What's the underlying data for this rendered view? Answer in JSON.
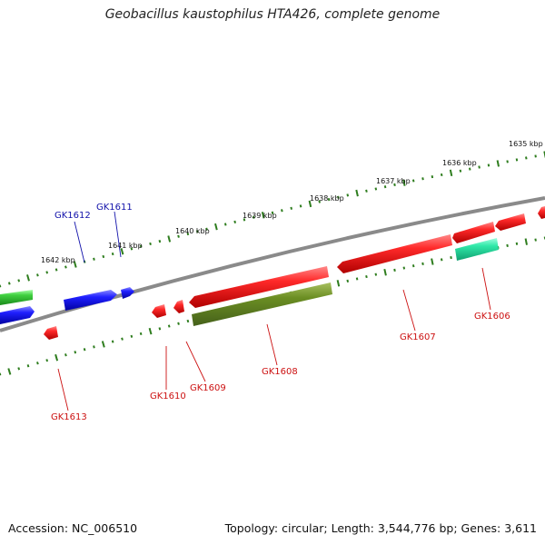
{
  "title": "Geobacillus kaustophilus HTA426, complete genome",
  "footer": {
    "accession": "Accession: NC_006510",
    "summary": "Topology: circular; Length: 3,544,776 bp; Genes: 3,611"
  },
  "colors": {
    "backbone": "#8a8a8a",
    "ticks": "#2e7d1e",
    "red": "#e8141a",
    "blue": "#1a22e0",
    "green": "#3cc83c",
    "olive": "#6b8e23",
    "teal": "#22e0a0",
    "label_red": "#cc1111",
    "label_blue": "#1111aa"
  },
  "scale_labels": [
    "1642 kbp",
    "1641 kbp",
    "1640 kbp",
    "1639 kbp",
    "1638 kbp",
    "1637 kbp",
    "1636 kbp",
    "1635 kbp"
  ],
  "gene_labels": [
    "GK1613",
    "GK1612",
    "GK1611",
    "GK1610",
    "GK1609",
    "GK1608",
    "GK1607",
    "GK1606"
  ]
}
